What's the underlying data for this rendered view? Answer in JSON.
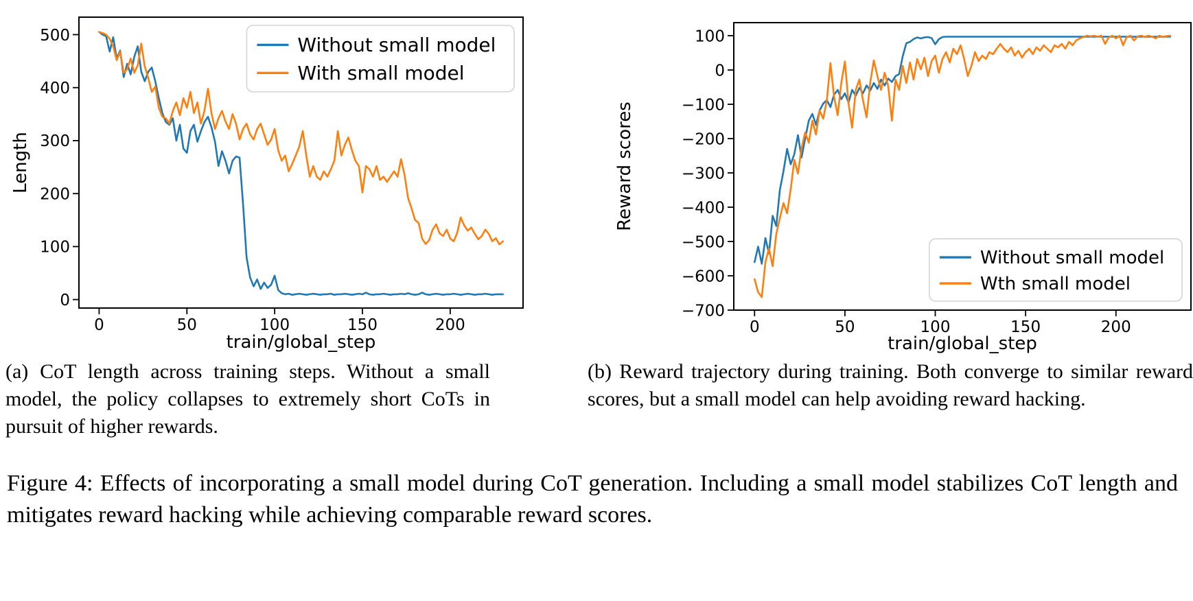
{
  "captions": {
    "a": "(a) CoT length across training steps. Without a small model, the policy collapses to extremely short CoTs in pursuit of higher rewards.",
    "b": "(b) Reward trajectory during training.  Both converge to similar reward scores, but a small model can help avoiding reward hacking.",
    "figure": "Figure 4: Effects of incorporating a small model during CoT generation. Including a small model stabilizes CoT length and mitigates reward hacking while achieving comparable reward scores."
  },
  "colors": {
    "blue": "#1f77b4",
    "orange": "#ff7f0e",
    "legend_border": "#d4d4d4",
    "axis": "#000000"
  },
  "chart_data": [
    {
      "id": "cot-length",
      "type": "line",
      "title": "",
      "xlabel": "train/global_step",
      "ylabel": "Length",
      "xlim": [
        -11.5,
        241.5
      ],
      "ylim": [
        -16,
        533
      ],
      "xticks": [
        0,
        50,
        100,
        150,
        200
      ],
      "yticks": [
        0,
        100,
        200,
        300,
        400,
        500
      ],
      "grid": false,
      "legend_loc": "upper right",
      "x_start": 0,
      "x_step": 2,
      "series": [
        {
          "name": "Without small model",
          "color": "#1f77b4",
          "y": [
            505,
            500,
            497,
            468,
            495,
            455,
            470,
            420,
            445,
            425,
            458,
            478,
            430,
            412,
            430,
            438,
            412,
            380,
            352,
            335,
            330,
            342,
            300,
            330,
            285,
            277,
            318,
            330,
            298,
            318,
            335,
            345,
            325,
            298,
            252,
            280,
            262,
            238,
            262,
            270,
            268,
            180,
            80,
            42,
            25,
            38,
            20,
            32,
            22,
            28,
            45,
            18,
            12,
            10,
            11,
            9,
            10,
            11,
            10,
            9,
            10,
            11,
            10,
            9,
            10,
            10,
            11,
            9,
            10,
            10,
            11,
            10,
            9,
            10,
            11,
            10,
            13,
            10,
            9,
            10,
            10,
            11,
            10,
            9,
            10,
            10,
            11,
            10,
            12,
            10,
            9,
            10,
            13,
            10,
            9,
            10,
            11,
            10,
            9,
            10,
            10,
            11,
            10,
            9,
            10,
            11,
            10,
            9,
            10,
            10,
            11,
            10,
            9,
            10,
            10,
            10
          ]
        },
        {
          "name": "With small model",
          "color": "#ff7f0e",
          "y": [
            505,
            503,
            500,
            492,
            478,
            452,
            468,
            428,
            435,
            455,
            428,
            442,
            483,
            440,
            418,
            392,
            402,
            362,
            345,
            342,
            332,
            356,
            372,
            348,
            380,
            362,
            392,
            352,
            372,
            332,
            356,
            398,
            352,
            322,
            342,
            356,
            336,
            322,
            350,
            332,
            302,
            322,
            332,
            312,
            302,
            322,
            332,
            312,
            292,
            302,
            322,
            282,
            262,
            272,
            242,
            256,
            272,
            288,
            318,
            272,
            232,
            252,
            232,
            226,
            242,
            232,
            246,
            262,
            318,
            272,
            292,
            306,
            282,
            262,
            252,
            202,
            252,
            246,
            232,
            252,
            226,
            232,
            222,
            232,
            242,
            232,
            265,
            235,
            192,
            172,
            150,
            145,
            115,
            105,
            112,
            132,
            142,
            125,
            120,
            132,
            115,
            110,
            126,
            155,
            140,
            130,
            136,
            124,
            114,
            120,
            132,
            124,
            110,
            116,
            104,
            110
          ]
        }
      ]
    },
    {
      "id": "reward-scores",
      "type": "line",
      "title": "",
      "xlabel": "train/global_step",
      "ylabel": "Reward scores",
      "xlim": [
        -11.5,
        241.5
      ],
      "ylim": [
        -700,
        138
      ],
      "xticks": [
        0,
        50,
        100,
        150,
        200
      ],
      "yticks": [
        100,
        0,
        -100,
        -200,
        -300,
        -400,
        -500,
        -600,
        -700
      ],
      "grid": false,
      "legend_loc": "lower right",
      "x_start": 0,
      "x_step": 2,
      "series": [
        {
          "name": "Without small model",
          "color": "#1f77b4",
          "y": [
            -560,
            -515,
            -565,
            -490,
            -535,
            -425,
            -455,
            -350,
            -295,
            -230,
            -275,
            -245,
            -190,
            -255,
            -200,
            -148,
            -128,
            -160,
            -118,
            -98,
            -88,
            -108,
            -72,
            -58,
            -85,
            -68,
            -95,
            -58,
            -75,
            -52,
            -68,
            -45,
            -60,
            -38,
            -55,
            -28,
            -45,
            -25,
            -35,
            -18,
            -12,
            40,
            78,
            82,
            90,
            95,
            92,
            95,
            96,
            93,
            75,
            90,
            96,
            97,
            97,
            97,
            97,
            97,
            97,
            97,
            97,
            97,
            97,
            97,
            97,
            97,
            97,
            97,
            97,
            97,
            97,
            97,
            97,
            97,
            97,
            97,
            97,
            97,
            97,
            97,
            97,
            97,
            97,
            97,
            97,
            97,
            97,
            97,
            97,
            97,
            97,
            97,
            97,
            97,
            97,
            97,
            97,
            97,
            97,
            97,
            97,
            97,
            97,
            97,
            97,
            97,
            97,
            97,
            97,
            97,
            97,
            97,
            97,
            97,
            97,
            97
          ]
        },
        {
          "name": "Wth small model",
          "color": "#ff7f0e",
          "y": [
            -610,
            -648,
            -662,
            -560,
            -520,
            -572,
            -478,
            -432,
            -388,
            -418,
            -348,
            -262,
            -302,
            -228,
            -182,
            -212,
            -148,
            -188,
            -118,
            -142,
            -88,
            20,
            -78,
            -132,
            -38,
            25,
            -98,
            -168,
            -58,
            -28,
            -88,
            -138,
            -38,
            28,
            -18,
            -58,
            -8,
            -48,
            -148,
            -28,
            -58,
            12,
            -38,
            22,
            -28,
            32,
            2,
            36,
            -18,
            26,
            42,
            -8,
            32,
            52,
            22,
            62,
            46,
            72,
            32,
            -18,
            12,
            52,
            26,
            42,
            32,
            52,
            46,
            62,
            76,
            62,
            52,
            66,
            42,
            56,
            36,
            52,
            62,
            46,
            66,
            56,
            72,
            62,
            52,
            72,
            66,
            76,
            62,
            82,
            72,
            86,
            92,
            96,
            100,
            98,
            100,
            97,
            100,
            76,
            95,
            100,
            92,
            100,
            72,
            96,
            100,
            86,
            98,
            100,
            96,
            100,
            97,
            92,
            100,
            96,
            99,
            100
          ]
        }
      ]
    }
  ]
}
